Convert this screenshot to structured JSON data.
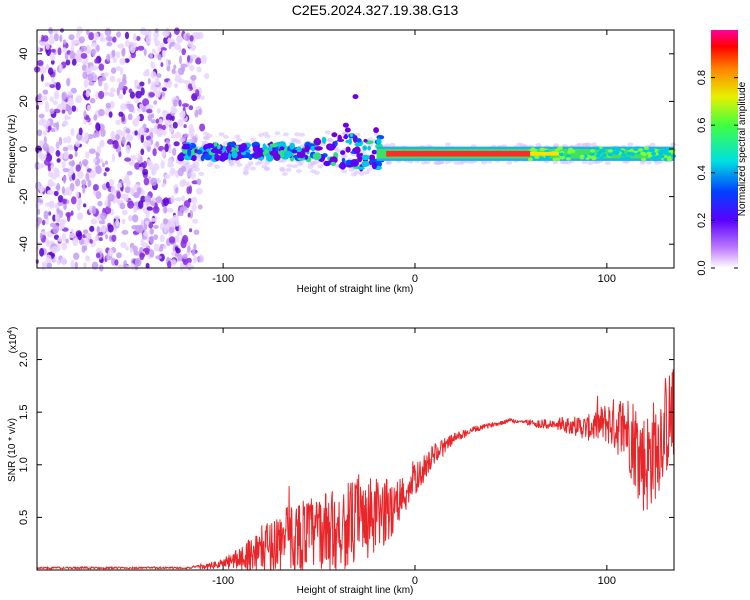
{
  "title": "C2E5.2024.327.19.38.G13",
  "colors": {
    "snr_line": "#e8262a",
    "ridge": "#ff2a2a",
    "scatter": "#7a00e6"
  },
  "chart_data": [
    {
      "type": "heatmap",
      "name": "spectrogram",
      "xlabel": "Height of straight line (km)",
      "ylabel": "Frequency (Hz)",
      "xlim": [
        -197,
        135
      ],
      "ylim": [
        -50,
        50
      ],
      "xticks": [
        -100,
        0,
        100
      ],
      "yticks": [
        -40,
        -20,
        0,
        20,
        40
      ],
      "colorbar": {
        "label": "Normalized spectral amplitude",
        "range": [
          0,
          1
        ],
        "ticks": [
          "0.0",
          "0.2",
          "0.4",
          "0.6",
          "0.8"
        ]
      },
      "features": {
        "noise_region_x": [
          -197,
          -108
        ],
        "signal_start_x": -122,
        "ridge_frequency_hz": -2
      }
    },
    {
      "type": "line",
      "name": "snr",
      "xlabel": "Height of straight line (km)",
      "ylabel": "SNR (10 * v/v)",
      "multiplier_label": "(x10",
      "multiplier_exp": "4",
      "xlim": [
        -197,
        135
      ],
      "ylim": [
        0,
        2.3
      ],
      "xticks": [
        -100,
        0,
        100
      ],
      "yticks": [
        "0.5",
        "1.0",
        "1.5",
        "2.0"
      ],
      "series": [
        {
          "x": [
            -197,
            -180,
            -160,
            -140,
            -120,
            -110,
            -100,
            -90,
            -80,
            -70,
            -60,
            -50,
            -40,
            -30,
            -20,
            -10,
            0,
            10,
            20,
            30,
            40,
            50,
            60,
            70,
            80,
            90,
            100,
            110,
            115,
            120,
            125,
            130,
            135
          ],
          "y": [
            0.02,
            0.02,
            0.02,
            0.02,
            0.02,
            0.03,
            0.06,
            0.12,
            0.2,
            0.28,
            0.33,
            0.36,
            0.4,
            0.45,
            0.5,
            0.62,
            0.85,
            1.1,
            1.25,
            1.33,
            1.38,
            1.42,
            1.4,
            1.38,
            1.38,
            1.35,
            1.4,
            1.35,
            1.2,
            1.0,
            1.15,
            1.35,
            1.5
          ],
          "amplitude": [
            0.01,
            0.01,
            0.01,
            0.01,
            0.01,
            0.02,
            0.05,
            0.12,
            0.22,
            0.3,
            0.35,
            0.35,
            0.4,
            0.42,
            0.38,
            0.25,
            0.15,
            0.1,
            0.05,
            0.03,
            0.02,
            0.02,
            0.03,
            0.05,
            0.08,
            0.12,
            0.2,
            0.35,
            0.45,
            0.5,
            0.5,
            0.5,
            0.45
          ]
        }
      ]
    }
  ]
}
